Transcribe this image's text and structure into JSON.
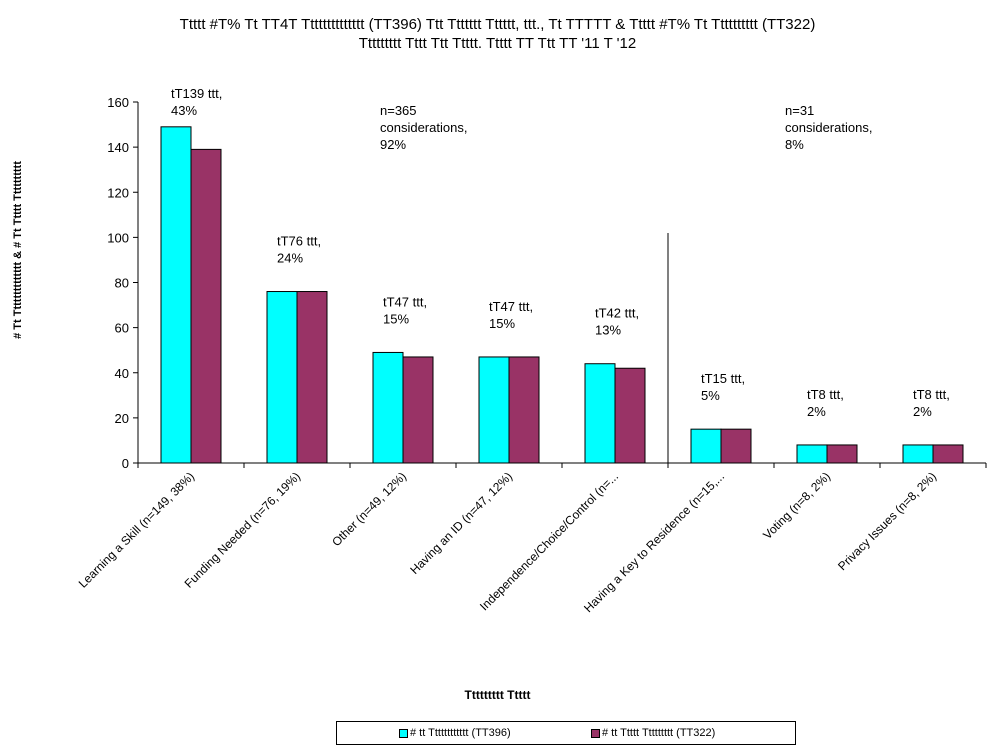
{
  "title_line1": "Ttttt #T% Tt TT4T Tttttttttttttt (TT396) Ttt Ttttttt Tttttt, ttt., Tt TTTTT & Ttttt #T% Tt Tttttttttt (TT322)",
  "title_line2": "Ttttttttt Tttt Ttt Ttttt. Ttttt TT Ttt TT '11 T '12",
  "colors": {
    "series1": "#00FFFF",
    "series2": "#993366",
    "axis": "#000000"
  },
  "chart_data": {
    "type": "bar",
    "xlabel": "Ttttttttt Ttttt",
    "ylabel": "# Tt Tttttttttttttt & # Tt Ttttt Tttttttttt",
    "ylim": [
      0,
      160
    ],
    "yticks": [
      0,
      20,
      40,
      60,
      80,
      100,
      120,
      140,
      160
    ],
    "grid": false,
    "legend_position": "bottom",
    "categories": [
      "Learning a Skill (n=149, 38%)",
      "Funding Needed (n=76, 19%)",
      "Other (n=49, 12%)",
      "Having an ID (n=47, 12%)",
      "Independence/Choice/Control (n=...",
      "Having a Key to Residence (n=15,...",
      "Voting (n=8, 2%)",
      "Privacy Issues (n=8, 2%)"
    ],
    "series": [
      {
        "name": "# tt Tttttttttttt (TT396)",
        "values": [
          149,
          76,
          49,
          47,
          44,
          15,
          8,
          8
        ]
      },
      {
        "name": "# tt Ttttt Ttttttttt (TT322)",
        "values": [
          139,
          76,
          47,
          47,
          42,
          15,
          8,
          8
        ]
      }
    ],
    "data_labels": [
      [
        "tT139 ttt,",
        "43%"
      ],
      [
        "tT76 ttt,",
        "24%"
      ],
      [
        "tT47 ttt,",
        "15%"
      ],
      [
        "tT47 ttt,",
        "15%"
      ],
      [
        "tT42 ttt,",
        "13%"
      ],
      [
        "tT15 ttt,",
        "5%"
      ],
      [
        "tT8 ttt,",
        "2%"
      ],
      [
        "tT8 ttt,",
        "2%"
      ]
    ],
    "annotations": [
      {
        "lines": [
          "n=365",
          "considerations,",
          "92%"
        ]
      },
      {
        "lines": [
          "n=31",
          "considerations,",
          "8%"
        ]
      }
    ],
    "divider_after_category": 4
  }
}
